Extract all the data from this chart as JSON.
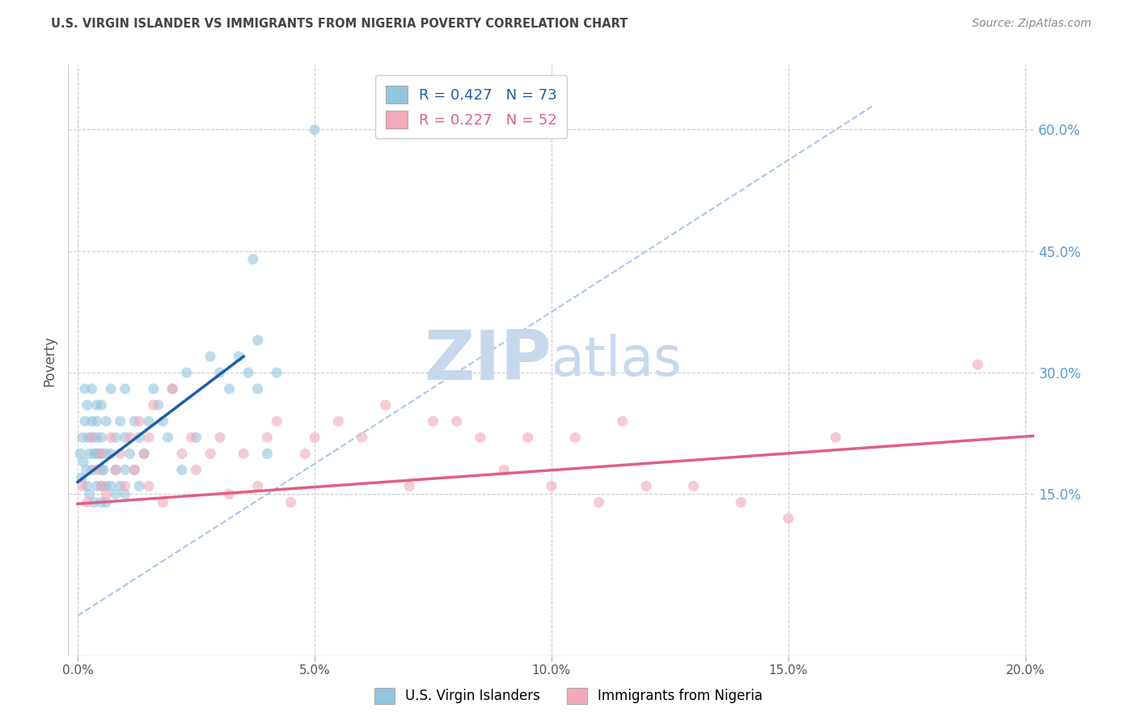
{
  "title": "U.S. VIRGIN ISLANDER VS IMMIGRANTS FROM NIGERIA POVERTY CORRELATION CHART",
  "source": "Source: ZipAtlas.com",
  "ylabel": "Poverty",
  "xlim": [
    -0.002,
    0.202
  ],
  "ylim": [
    -0.05,
    0.68
  ],
  "xticks": [
    0.0,
    0.05,
    0.1,
    0.15,
    0.2
  ],
  "yticks_right": [
    0.15,
    0.3,
    0.45,
    0.6
  ],
  "right_tick_labels": [
    "15.0%",
    "30.0%",
    "45.0%",
    "60.0%"
  ],
  "xtick_labels": [
    "0.0%",
    "5.0%",
    "10.0%",
    "15.0%",
    "20.0%"
  ],
  "legend_entries": [
    {
      "label": "R = 0.427   N = 73",
      "color": "#92c5de"
    },
    {
      "label": "R = 0.227   N = 52",
      "color": "#f4a8bc"
    }
  ],
  "legend_bottom": [
    {
      "label": "U.S. Virgin Islanders",
      "color": "#92c5de"
    },
    {
      "label": "Immigrants from Nigeria",
      "color": "#f4a8bc"
    }
  ],
  "blue_line_color": "#1a5fa8",
  "pink_line_color": "#e06080",
  "diag_line_color": "#a8c8e8",
  "background_color": "#ffffff",
  "grid_color": "#cccccc",
  "title_color": "#444444",
  "source_color": "#888888",
  "right_label_color": "#5b9bd5",
  "ylabel_color": "#555555",
  "watermark_zip_color": "#c8d8ec",
  "watermark_atlas_color": "#c8d8ec",
  "blue_scatter_x": [
    0.0005,
    0.0008,
    0.001,
    0.0012,
    0.0015,
    0.0015,
    0.0018,
    0.002,
    0.002,
    0.0022,
    0.0025,
    0.0025,
    0.003,
    0.003,
    0.003,
    0.003,
    0.0035,
    0.0035,
    0.004,
    0.004,
    0.004,
    0.004,
    0.004,
    0.0045,
    0.005,
    0.005,
    0.005,
    0.005,
    0.005,
    0.005,
    0.0055,
    0.006,
    0.006,
    0.006,
    0.006,
    0.007,
    0.007,
    0.007,
    0.008,
    0.008,
    0.008,
    0.009,
    0.009,
    0.01,
    0.01,
    0.01,
    0.01,
    0.011,
    0.012,
    0.012,
    0.013,
    0.013,
    0.014,
    0.015,
    0.016,
    0.017,
    0.018,
    0.019,
    0.02,
    0.022,
    0.023,
    0.025,
    0.028,
    0.03,
    0.032,
    0.034,
    0.036,
    0.037,
    0.038,
    0.038,
    0.04,
    0.042,
    0.05
  ],
  "blue_scatter_y": [
    0.2,
    0.17,
    0.22,
    0.19,
    0.24,
    0.28,
    0.18,
    0.16,
    0.26,
    0.22,
    0.15,
    0.2,
    0.18,
    0.22,
    0.24,
    0.28,
    0.14,
    0.2,
    0.16,
    0.2,
    0.22,
    0.24,
    0.26,
    0.2,
    0.14,
    0.16,
    0.18,
    0.2,
    0.22,
    0.26,
    0.18,
    0.14,
    0.16,
    0.2,
    0.24,
    0.16,
    0.2,
    0.28,
    0.15,
    0.18,
    0.22,
    0.16,
    0.24,
    0.15,
    0.18,
    0.22,
    0.28,
    0.2,
    0.18,
    0.24,
    0.16,
    0.22,
    0.2,
    0.24,
    0.28,
    0.26,
    0.24,
    0.22,
    0.28,
    0.18,
    0.3,
    0.22,
    0.32,
    0.3,
    0.28,
    0.32,
    0.3,
    0.44,
    0.28,
    0.34,
    0.2,
    0.3,
    0.6
  ],
  "pink_scatter_x": [
    0.001,
    0.002,
    0.003,
    0.004,
    0.005,
    0.005,
    0.006,
    0.007,
    0.008,
    0.009,
    0.01,
    0.011,
    0.012,
    0.013,
    0.014,
    0.015,
    0.015,
    0.016,
    0.018,
    0.02,
    0.022,
    0.024,
    0.025,
    0.028,
    0.03,
    0.032,
    0.035,
    0.038,
    0.04,
    0.042,
    0.045,
    0.048,
    0.05,
    0.055,
    0.06,
    0.065,
    0.07,
    0.075,
    0.08,
    0.085,
    0.09,
    0.095,
    0.1,
    0.105,
    0.11,
    0.115,
    0.12,
    0.13,
    0.14,
    0.15,
    0.16,
    0.19
  ],
  "pink_scatter_y": [
    0.16,
    0.14,
    0.22,
    0.18,
    0.2,
    0.16,
    0.15,
    0.22,
    0.18,
    0.2,
    0.16,
    0.22,
    0.18,
    0.24,
    0.2,
    0.16,
    0.22,
    0.26,
    0.14,
    0.28,
    0.2,
    0.22,
    0.18,
    0.2,
    0.22,
    0.15,
    0.2,
    0.16,
    0.22,
    0.24,
    0.14,
    0.2,
    0.22,
    0.24,
    0.22,
    0.26,
    0.16,
    0.24,
    0.24,
    0.22,
    0.18,
    0.22,
    0.16,
    0.22,
    0.14,
    0.24,
    0.16,
    0.16,
    0.14,
    0.12,
    0.22,
    0.31
  ],
  "blue_trend_x": [
    0.0,
    0.035
  ],
  "blue_trend_y": [
    0.165,
    0.32
  ],
  "pink_trend_x": [
    0.0,
    0.202
  ],
  "pink_trend_y": [
    0.138,
    0.222
  ],
  "diag_line_x": [
    0.0,
    0.168
  ],
  "diag_line_y": [
    0.0,
    0.63
  ]
}
